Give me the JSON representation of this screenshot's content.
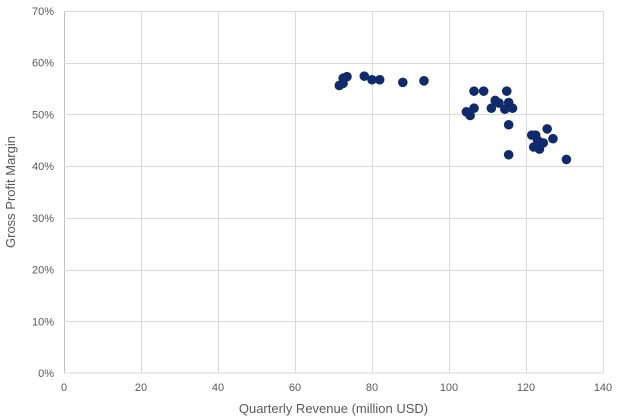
{
  "chart_data": {
    "type": "scatter",
    "title": "",
    "xlabel": "Quarterly Revenue (million USD)",
    "ylabel": "Gross Profit Margin",
    "xlim": [
      0,
      140
    ],
    "ylim": [
      0,
      0.7
    ],
    "x_ticks": [
      0,
      20,
      40,
      60,
      80,
      100,
      120,
      140
    ],
    "x_tick_labels": [
      "0",
      "20",
      "40",
      "60",
      "80",
      "100",
      "120",
      "140"
    ],
    "y_ticks": [
      0,
      0.1,
      0.2,
      0.3,
      0.4,
      0.5,
      0.6,
      0.7
    ],
    "y_tick_labels": [
      "0%",
      "10%",
      "20%",
      "30%",
      "40%",
      "50%",
      "60%",
      "70%"
    ],
    "grid": true,
    "legend": false,
    "marker_color": "#102a6b",
    "series": [
      {
        "points": [
          {
            "x": 71.5,
            "y": 0.556
          },
          {
            "x": 72.5,
            "y": 0.56
          },
          {
            "x": 72.5,
            "y": 0.57
          },
          {
            "x": 73.5,
            "y": 0.573
          },
          {
            "x": 78.0,
            "y": 0.574
          },
          {
            "x": 80.0,
            "y": 0.567
          },
          {
            "x": 82.0,
            "y": 0.567
          },
          {
            "x": 88.0,
            "y": 0.562
          },
          {
            "x": 93.5,
            "y": 0.565
          },
          {
            "x": 104.5,
            "y": 0.505
          },
          {
            "x": 105.5,
            "y": 0.498
          },
          {
            "x": 106.5,
            "y": 0.545
          },
          {
            "x": 106.5,
            "y": 0.512
          },
          {
            "x": 109.0,
            "y": 0.545
          },
          {
            "x": 111.0,
            "y": 0.512
          },
          {
            "x": 112.0,
            "y": 0.527
          },
          {
            "x": 113.0,
            "y": 0.522
          },
          {
            "x": 114.5,
            "y": 0.51
          },
          {
            "x": 115.0,
            "y": 0.545
          },
          {
            "x": 115.5,
            "y": 0.523
          },
          {
            "x": 115.5,
            "y": 0.48
          },
          {
            "x": 115.5,
            "y": 0.422
          },
          {
            "x": 116.5,
            "y": 0.512
          },
          {
            "x": 121.5,
            "y": 0.46
          },
          {
            "x": 122.0,
            "y": 0.437
          },
          {
            "x": 122.5,
            "y": 0.46
          },
          {
            "x": 123.0,
            "y": 0.45
          },
          {
            "x": 123.5,
            "y": 0.433
          },
          {
            "x": 124.5,
            "y": 0.445
          },
          {
            "x": 125.5,
            "y": 0.472
          },
          {
            "x": 127.0,
            "y": 0.453
          },
          {
            "x": 130.5,
            "y": 0.413
          }
        ]
      }
    ]
  }
}
